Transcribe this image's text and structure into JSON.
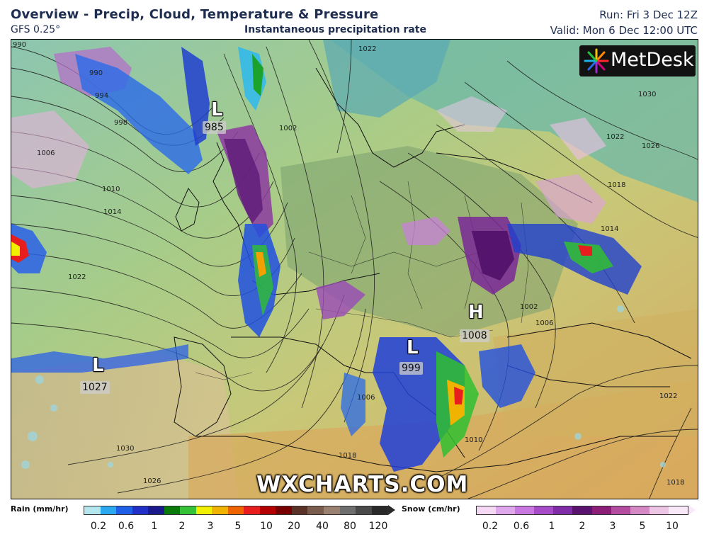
{
  "header": {
    "title": "Overview - Precip, Cloud, Temperature & Pressure",
    "model": "GFS 0.25°",
    "product": "Instantaneous precipitation rate",
    "run": "Run: Fri 3 Dec 12Z",
    "valid": "Valid: Mon 6 Dec 12:00 UTC"
  },
  "branding": {
    "logo_text": "MetDesk",
    "watermark": "WXCHARTS.COM"
  },
  "pressure_systems": [
    {
      "type": "L",
      "value": "985"
    },
    {
      "type": "L",
      "value": "1027"
    },
    {
      "type": "L",
      "value": "999"
    },
    {
      "type": "H",
      "value": "1008"
    }
  ],
  "isobar_labels": [
    "990",
    "990",
    "994",
    "998",
    "1006",
    "1010",
    "1014",
    "1022",
    "1002",
    "1022",
    "1030",
    "1022",
    "1026",
    "1018",
    "1014",
    "1006",
    "1002",
    "1022",
    "1010",
    "1030",
    "1026",
    "1018",
    "1018",
    "1006"
  ],
  "legend": {
    "rain": {
      "title": "Rain (mm/hr)",
      "ticks": [
        "0.2",
        "0.6",
        "1",
        "2",
        "3",
        "5",
        "10",
        "20",
        "40",
        "80",
        "120"
      ],
      "colors": [
        "#b4e6ee",
        "#2aa8f0",
        "#2060e8",
        "#2030c8",
        "#1a1a8c",
        "#0a7a0a",
        "#36c236",
        "#f0f000",
        "#f0b400",
        "#f06400",
        "#e81e1e",
        "#b40000",
        "#780000",
        "#5a3228",
        "#7a5c4c",
        "#9a8070",
        "#6e6e6e",
        "#4a4a4a",
        "#2a2a2a"
      ]
    },
    "snow": {
      "title": "Snow (cm/hr)",
      "ticks": [
        "0.2",
        "0.6",
        "1",
        "2",
        "3",
        "5",
        "10"
      ],
      "colors": [
        "#f4d8f4",
        "#e0a8ec",
        "#c878e0",
        "#a64cc8",
        "#7e2ca8",
        "#5a1470",
        "#8c1e78",
        "#b44ca0",
        "#d488c4",
        "#ecc4e4",
        "#f8e8f8"
      ]
    }
  }
}
